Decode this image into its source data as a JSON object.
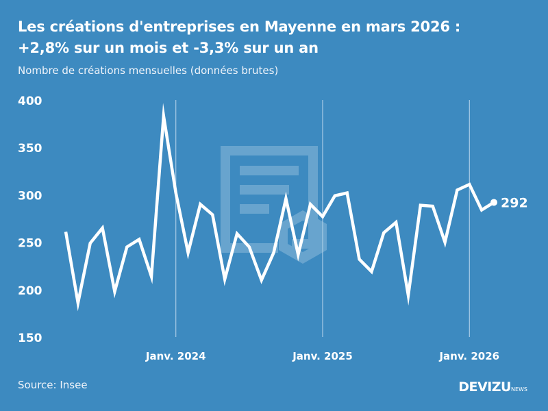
{
  "header": {
    "title_line1": "Les créations d'entreprises en Mayenne en mars 2026 :",
    "title_line2": "+2,8% sur un mois et -3,3% sur un an",
    "subtitle": "Nombre de créations mensuelles (données brutes)"
  },
  "footer": {
    "source": "Source: Insee",
    "brand": "DEVIZU",
    "brand_suffix": "NEWS"
  },
  "colors": {
    "background": "#3d8ac0",
    "line": "#ffffff",
    "gridline": "#a9cbe6"
  },
  "chart_data": {
    "type": "line",
    "title": "Les créations d'entreprises en Mayenne en mars 2026 : +2,8% sur un mois et -3,3% sur un an",
    "subtitle": "Nombre de créations mensuelles (données brutes)",
    "ylim": [
      150,
      400
    ],
    "yticks": [
      150,
      200,
      250,
      300,
      350,
      400
    ],
    "xtick_labels": [
      "Janv. 2024",
      "Janv. 2025",
      "Janv. 2026"
    ],
    "grid": "vertical lines at January",
    "x": [
      "2023-04",
      "2023-05",
      "2023-06",
      "2023-07",
      "2023-08",
      "2023-09",
      "2023-10",
      "2023-11",
      "2023-12",
      "2024-01",
      "2024-02",
      "2024-03",
      "2024-04",
      "2024-05",
      "2024-06",
      "2024-07",
      "2024-08",
      "2024-09",
      "2024-10",
      "2024-11",
      "2024-12",
      "2025-01",
      "2025-02",
      "2025-03",
      "2025-04",
      "2025-05",
      "2025-06",
      "2025-07",
      "2025-08",
      "2025-09",
      "2025-10",
      "2025-11",
      "2025-12",
      "2026-01",
      "2026-02",
      "2026-03"
    ],
    "values": [
      261,
      186,
      249,
      265,
      198,
      245,
      253,
      214,
      383,
      302,
      239,
      290,
      279,
      211,
      259,
      245,
      210,
      239,
      296,
      237,
      290,
      277,
      299,
      302,
      232,
      219,
      260,
      271,
      194,
      289,
      288,
      250,
      305,
      311,
      284,
      292
    ],
    "last_label": "292"
  }
}
